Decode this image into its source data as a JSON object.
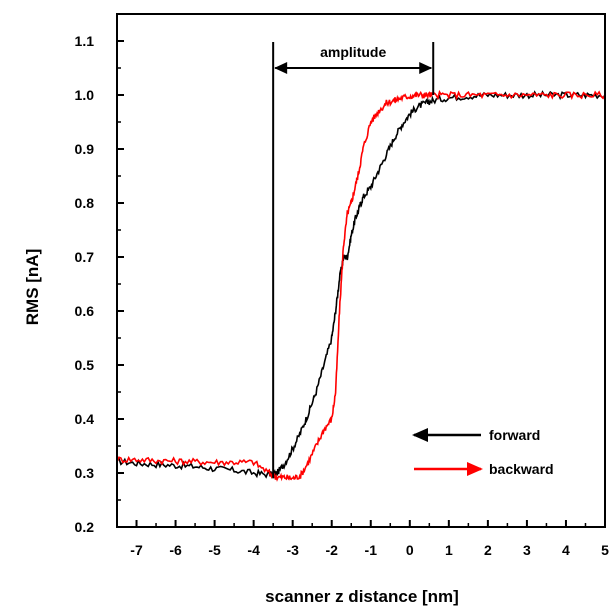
{
  "chart_data": {
    "type": "line",
    "xlabel": "scanner z distance [nm]",
    "ylabel": "RMS [nA]",
    "xlim": [
      -7.5,
      5
    ],
    "ylim": [
      0.2,
      1.15
    ],
    "xticks": [
      -7,
      -6,
      -5,
      -4,
      -3,
      -2,
      -1,
      0,
      1,
      2,
      3,
      4,
      5
    ],
    "yticks": [
      0.2,
      0.3,
      0.4,
      0.5,
      0.6,
      0.7,
      0.8,
      0.9,
      1.0,
      1.1
    ],
    "xtick_labels": [
      "-7",
      "-6",
      "-5",
      "-4",
      "-3",
      "-2",
      "-1",
      "0",
      "1",
      "2",
      "3",
      "4",
      "5"
    ],
    "ytick_labels": [
      "0.2",
      "0.3",
      "0.4",
      "0.5",
      "0.6",
      "0.7",
      "0.8",
      "0.9",
      "1.0",
      "1.1"
    ],
    "grid": false,
    "legend_position": "bottom-right",
    "series": [
      {
        "name": "forward",
        "color": "#000000",
        "direction": "left",
        "x": [
          -7.5,
          -7.0,
          -6.5,
          -6.0,
          -5.5,
          -5.0,
          -4.5,
          -4.0,
          -3.6,
          -3.4,
          -3.2,
          -3.0,
          -2.8,
          -2.6,
          -2.4,
          -2.2,
          -2.0,
          -1.9,
          -1.8,
          -1.7,
          -1.6,
          -1.5,
          -1.4,
          -1.3,
          -1.2,
          -1.0,
          -0.8,
          -0.6,
          -0.4,
          -0.2,
          0.0,
          0.2,
          0.4,
          0.6,
          1.0,
          1.5,
          2.0,
          2.5,
          3.0,
          3.5,
          4.0,
          4.5,
          5.0
        ],
        "y": [
          0.322,
          0.318,
          0.316,
          0.314,
          0.312,
          0.308,
          0.305,
          0.3,
          0.297,
          0.3,
          0.318,
          0.345,
          0.375,
          0.41,
          0.45,
          0.5,
          0.55,
          0.6,
          0.66,
          0.7,
          0.7,
          0.74,
          0.77,
          0.79,
          0.81,
          0.83,
          0.86,
          0.89,
          0.92,
          0.945,
          0.965,
          0.978,
          0.985,
          0.99,
          0.995,
          0.998,
          1.0,
          1.0,
          1.0,
          1.0,
          1.0,
          1.0,
          1.0
        ]
      },
      {
        "name": "backward",
        "color": "#ff0000",
        "direction": "right",
        "x": [
          -7.5,
          -7.0,
          -6.5,
          -6.0,
          -5.5,
          -5.0,
          -4.5,
          -4.0,
          -3.6,
          -3.4,
          -3.2,
          -3.0,
          -2.8,
          -2.6,
          -2.4,
          -2.2,
          -2.0,
          -1.9,
          -1.8,
          -1.7,
          -1.6,
          -1.5,
          -1.4,
          -1.3,
          -1.2,
          -1.0,
          -0.8,
          -0.6,
          -0.4,
          -0.2,
          0.0,
          0.2,
          0.4,
          0.6,
          1.0,
          1.5,
          2.0,
          2.5,
          3.0,
          3.5,
          4.0,
          4.5,
          5.0
        ],
        "y": [
          0.325,
          0.325,
          0.323,
          0.322,
          0.321,
          0.32,
          0.32,
          0.32,
          0.3,
          0.292,
          0.292,
          0.29,
          0.295,
          0.32,
          0.35,
          0.38,
          0.4,
          0.45,
          0.6,
          0.72,
          0.78,
          0.8,
          0.83,
          0.86,
          0.9,
          0.95,
          0.97,
          0.985,
          0.99,
          0.995,
          0.998,
          1.0,
          1.0,
          1.0,
          1.0,
          1.0,
          1.0,
          1.0,
          1.0,
          1.0,
          1.0,
          1.0,
          1.0
        ]
      }
    ],
    "annotations": {
      "amplitude_label": "amplitude",
      "amplitude_x_start": -3.5,
      "amplitude_x_end": 0.6,
      "amplitude_y": 1.05
    }
  }
}
